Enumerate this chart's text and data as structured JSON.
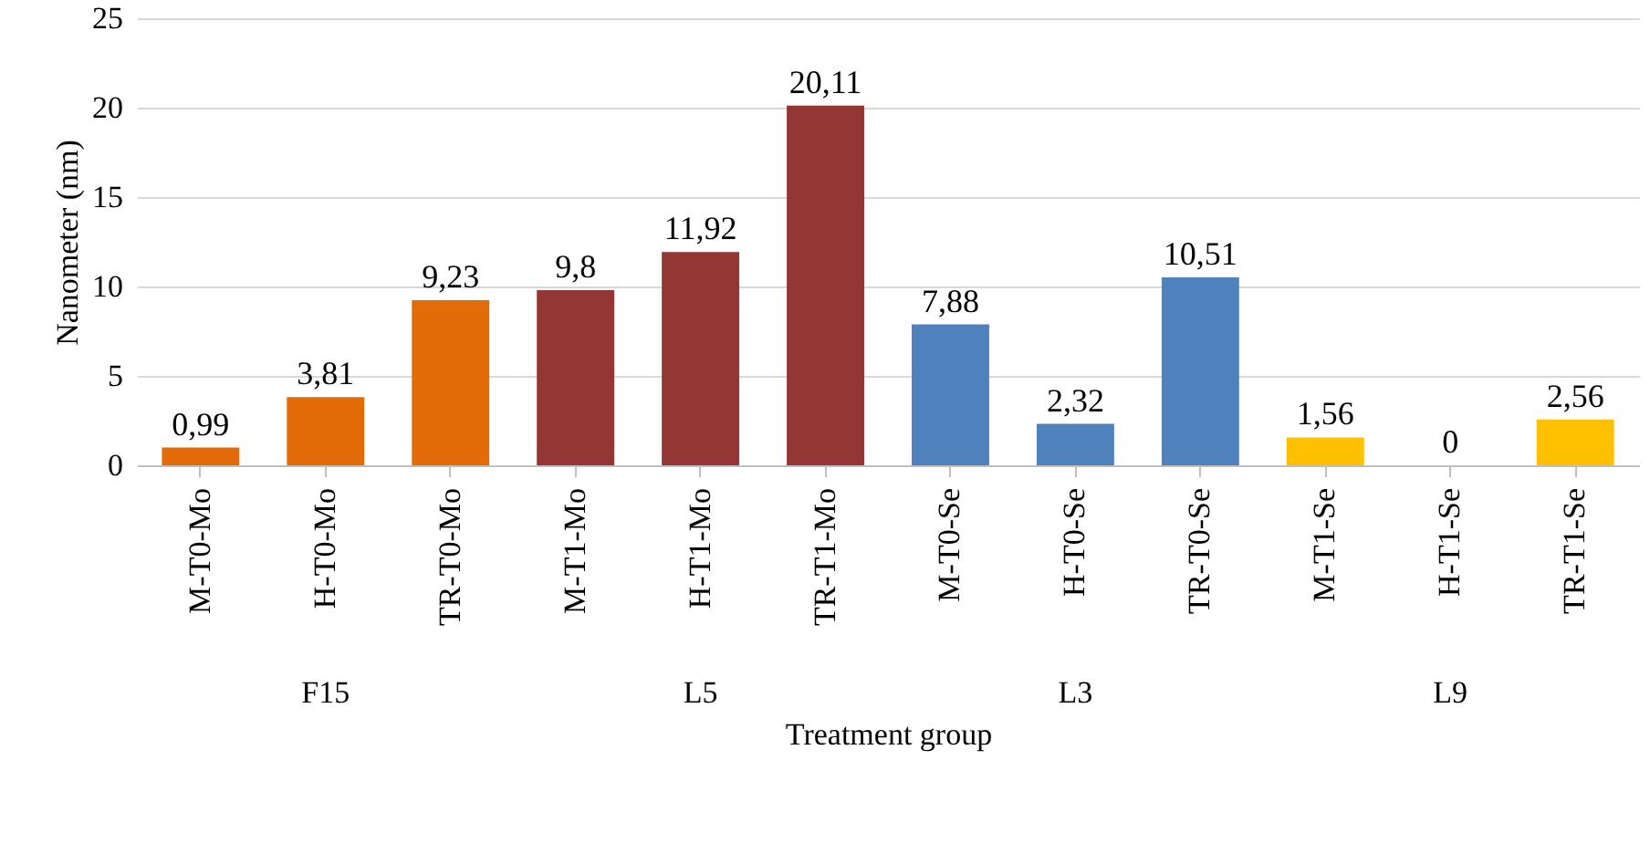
{
  "chart_data": {
    "type": "bar",
    "xlabel": "Treatment group",
    "ylabel": "Nanometer (nm)",
    "categories": [
      "M-T0-Mo",
      "H-T0-Mo",
      "TR-T0-Mo",
      "M-T1-Mo",
      "H-T1-Mo",
      "TR-T1-Mo",
      "M-T0-Se",
      "H-T0-Se",
      "TR-T0-Se",
      "M-T1-Se",
      "H-T1-Se",
      "TR-T1-Se"
    ],
    "values": [
      0.99,
      3.81,
      9.23,
      9.8,
      11.92,
      20.11,
      7.88,
      2.32,
      10.51,
      1.56,
      0,
      2.56
    ],
    "value_labels": [
      "0,99",
      "3,81",
      "9,23",
      "9,8",
      "11,92",
      "20,11",
      "7,88",
      "2,32",
      "10,51",
      "1,56",
      "0",
      "2,56"
    ],
    "colors": [
      "#e36c09",
      "#e36c09",
      "#e36c09",
      "#943634",
      "#943634",
      "#943634",
      "#4f81bd",
      "#4f81bd",
      "#4f81bd",
      "#ffc000",
      "#ffc000",
      "#ffc000"
    ],
    "ylim": [
      0,
      25
    ],
    "yticks": [
      0,
      5,
      10,
      15,
      20,
      25
    ],
    "grid": "y",
    "annotations": [
      "F15",
      "L5",
      "L3",
      "L9"
    ]
  }
}
